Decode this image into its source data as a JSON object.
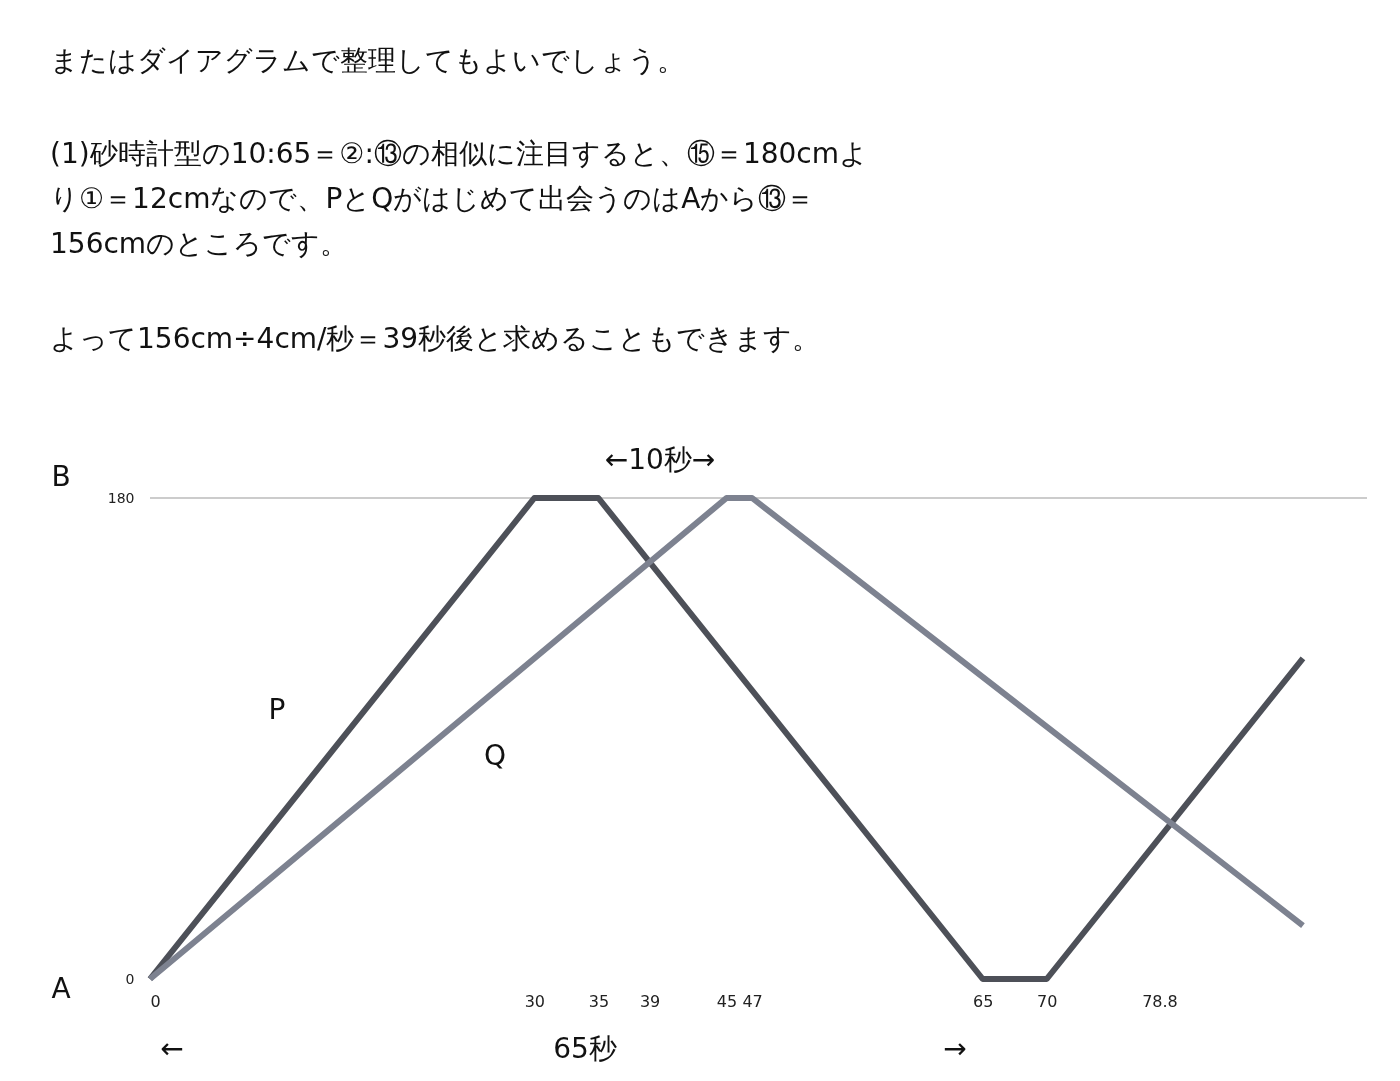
{
  "chart_data": {
    "type": "line",
    "x": [
      0,
      30,
      35,
      65,
      70,
      90
    ],
    "series": [
      {
        "name": "P",
        "color": "#4d5058",
        "values": [
          0,
          180,
          180,
          0,
          0,
          120
        ]
      },
      {
        "name": "Q",
        "color": "#7d8290",
        "x": [
          0,
          45,
          47,
          90
        ],
        "values": [
          0,
          180,
          180,
          20
        ]
      }
    ],
    "xlim": [
      0,
      95
    ],
    "ylim": [
      0,
      180
    ],
    "xticks": [
      0,
      30,
      35,
      39,
      45,
      47,
      65,
      70,
      {
        "value": 78.8,
        "label": "78.8"
      }
    ],
    "yticks": [
      0,
      180
    ],
    "ref_lines": [
      {
        "axis": "y",
        "value": 180,
        "color": "#bbbbbb"
      }
    ],
    "line_style": "solid",
    "annotations": [
      "またはダイアグラムで整理してもよいでしょう。",
      "(1)砂時計型の10:65＝②:⑬の相似に注目すると、⑮＝180cmよ",
      "り①＝12cmなので、PとQがはじめて出会うのはAから⑬＝",
      "156cmのところです。",
      "よって156cm÷4cm/秒＝39秒後と求めることもできます。",
      "B",
      "A",
      "←10秒→",
      "←",
      "65秒",
      "→"
    ]
  }
}
